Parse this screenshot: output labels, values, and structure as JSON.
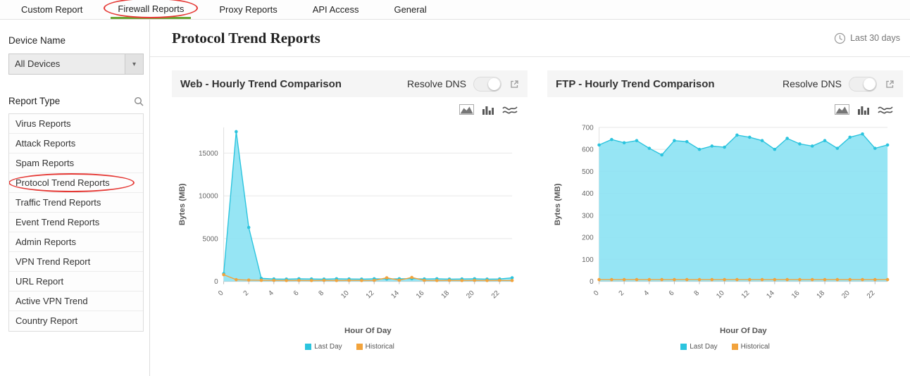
{
  "tabs": {
    "items": [
      {
        "label": "Custom Report",
        "active": false
      },
      {
        "label": "Firewall Reports",
        "active": true
      },
      {
        "label": "Proxy Reports",
        "active": false
      },
      {
        "label": "API Access",
        "active": false
      },
      {
        "label": "General",
        "active": false
      }
    ]
  },
  "sidebar": {
    "device_name_label": "Device Name",
    "device_select_value": "All Devices",
    "report_type_label": "Report Type",
    "report_types": [
      {
        "label": "Virus Reports",
        "selected": false
      },
      {
        "label": "Attack Reports",
        "selected": false
      },
      {
        "label": "Spam Reports",
        "selected": false
      },
      {
        "label": "Protocol Trend Reports",
        "selected": true
      },
      {
        "label": "Traffic Trend Reports",
        "selected": false
      },
      {
        "label": "Event Trend Reports",
        "selected": false
      },
      {
        "label": "Admin Reports",
        "selected": false
      },
      {
        "label": "VPN Trend Report",
        "selected": false
      },
      {
        "label": "URL Report",
        "selected": false
      },
      {
        "label": "Active VPN Trend",
        "selected": false
      },
      {
        "label": "Country Report",
        "selected": false
      }
    ]
  },
  "page": {
    "title": "Protocol Trend Reports",
    "time_range_label": "Last 30 days"
  },
  "panels": [
    {
      "title": "Web - Hourly Trend Comparison",
      "resolve_dns_label": "Resolve DNS",
      "resolve_dns_on": false
    },
    {
      "title": "FTP - Hourly Trend Comparison",
      "resolve_dns_label": "Resolve DNS",
      "resolve_dns_on": false
    }
  ],
  "colors": {
    "last_day": "#2bc4de",
    "last_day_fill": "rgba(132,224,242,0.85)",
    "historical": "#f2a33c",
    "active_tab_underline": "#6aa431",
    "annotation_red": "#e53935"
  },
  "chart_data": [
    {
      "type": "area",
      "title": "Web - Hourly Trend Comparison",
      "xlabel": "Hour Of Day",
      "ylabel": "Bytes (MB)",
      "x": [
        0,
        1,
        2,
        3,
        4,
        5,
        6,
        7,
        8,
        9,
        10,
        11,
        12,
        13,
        14,
        15,
        16,
        17,
        18,
        19,
        20,
        21,
        22,
        23
      ],
      "ylim": [
        0,
        18000
      ],
      "yticks": [
        0,
        5000,
        10000,
        15000
      ],
      "grid": true,
      "legend_position": "bottom",
      "series": [
        {
          "name": "Last Day",
          "color": "#2bc4de",
          "fill": "rgba(132,224,242,0.85)",
          "values": [
            900,
            17500,
            6300,
            350,
            280,
            260,
            300,
            280,
            260,
            300,
            280,
            260,
            300,
            280,
            300,
            320,
            280,
            300,
            260,
            280,
            300,
            260,
            280,
            420
          ]
        },
        {
          "name": "Historical",
          "color": "#f2a33c",
          "fill": null,
          "values": [
            780,
            200,
            150,
            120,
            110,
            100,
            110,
            100,
            110,
            100,
            110,
            100,
            110,
            420,
            120,
            460,
            110,
            100,
            110,
            100,
            110,
            100,
            110,
            100
          ]
        }
      ]
    },
    {
      "type": "area",
      "title": "FTP - Hourly Trend Comparison",
      "xlabel": "Hour Of Day",
      "ylabel": "Bytes (MB)",
      "x": [
        0,
        1,
        2,
        3,
        4,
        5,
        6,
        7,
        8,
        9,
        10,
        11,
        12,
        13,
        14,
        15,
        16,
        17,
        18,
        19,
        20,
        21,
        22,
        23
      ],
      "ylim": [
        0,
        700
      ],
      "yticks": [
        0,
        100,
        200,
        300,
        400,
        500,
        600,
        700
      ],
      "grid": true,
      "legend_position": "bottom",
      "series": [
        {
          "name": "Last Day",
          "color": "#2bc4de",
          "fill": "rgba(132,224,242,0.85)",
          "values": [
            620,
            645,
            630,
            640,
            605,
            575,
            640,
            635,
            600,
            615,
            610,
            665,
            655,
            640,
            600,
            650,
            625,
            615,
            640,
            605,
            655,
            670,
            605,
            620
          ]
        },
        {
          "name": "Historical",
          "color": "#f2a33c",
          "fill": null,
          "values": [
            8,
            8,
            8,
            8,
            8,
            8,
            8,
            8,
            8,
            8,
            8,
            8,
            8,
            8,
            8,
            8,
            8,
            8,
            8,
            8,
            8,
            8,
            8,
            8
          ]
        }
      ]
    }
  ]
}
